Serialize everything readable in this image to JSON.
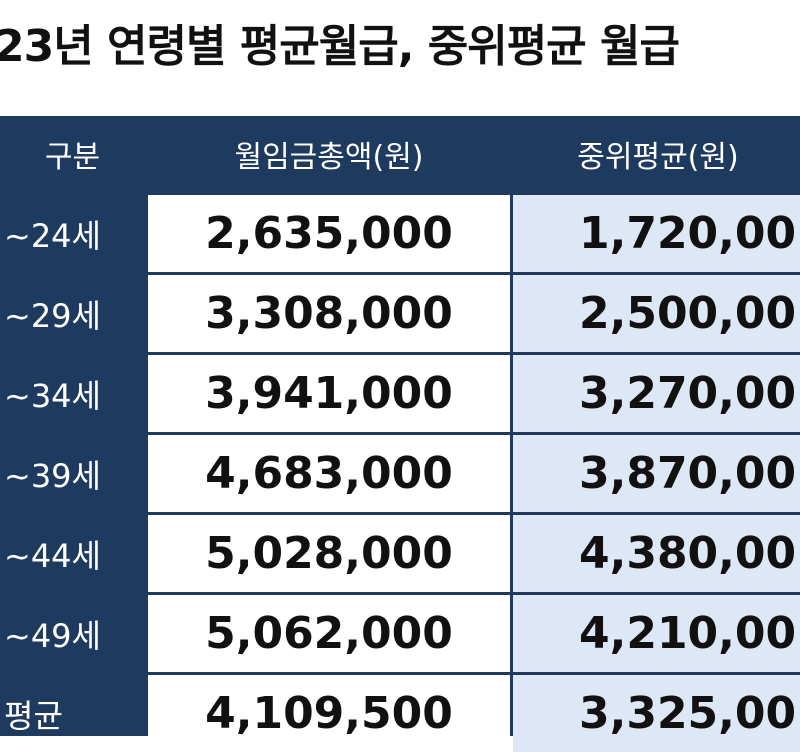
{
  "title": "23년 연령별 평균월급, 중위평균 월급",
  "table": {
    "header": [
      "구분",
      "월임금총액(원)",
      "중위평균(원)"
    ],
    "rows": [
      [
        "~24세",
        "2,635,000",
        "1,720,00"
      ],
      [
        "~29세",
        "3,308,000",
        "2,500,00"
      ],
      [
        "~34세",
        "3,941,000",
        "3,270,00"
      ],
      [
        "~39세",
        "4,683,000",
        "3,870,00"
      ],
      [
        "~44세",
        "5,028,000",
        "4,380,00"
      ],
      [
        "~49세",
        "5,062,000",
        "4,210,00"
      ],
      [
        "평균",
        "4,109,500",
        "3,325,00"
      ]
    ]
  }
}
